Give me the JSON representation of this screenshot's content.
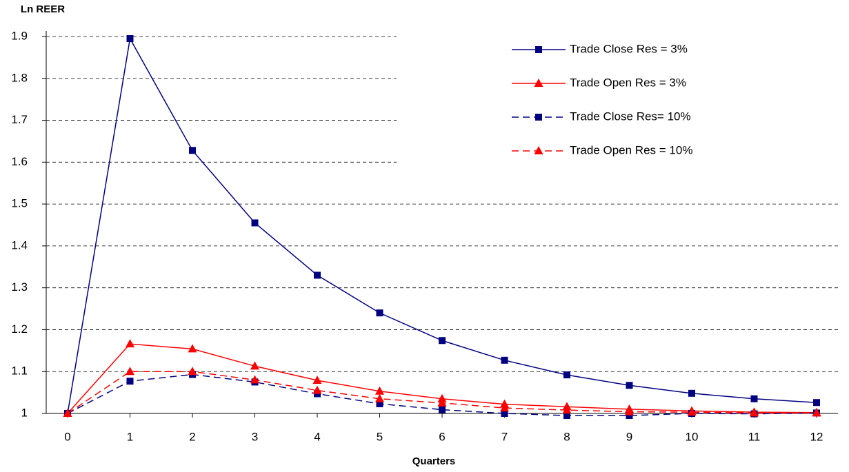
{
  "chart_data": {
    "type": "line",
    "title": "Ln REER",
    "x_label": "Quarters",
    "categories": [
      "0",
      "1",
      "2",
      "3",
      "4",
      "5",
      "6",
      "7",
      "8",
      "9",
      "10",
      "11",
      "12"
    ],
    "ylim": [
      1,
      1.9
    ],
    "yticks": [
      1,
      1.1,
      1.2,
      1.3,
      1.4,
      1.5,
      1.6,
      1.7,
      1.8,
      1.9
    ],
    "grid": true,
    "series": [
      {
        "name": "Trade Close Res = 3%",
        "color": "#000080",
        "marker": "square",
        "dashed": false,
        "values": [
          1.0,
          1.895,
          1.628,
          1.455,
          1.33,
          1.24,
          1.174,
          1.127,
          1.092,
          1.067,
          1.048,
          1.035,
          1.026
        ]
      },
      {
        "name": "Trade Open Res = 3%",
        "color": "#ff0000",
        "marker": "triangle",
        "dashed": false,
        "values": [
          1.0,
          1.166,
          1.154,
          1.113,
          1.079,
          1.053,
          1.035,
          1.022,
          1.016,
          1.01,
          1.006,
          1.003,
          1.002
        ]
      },
      {
        "name": "Trade Close Res= 10%",
        "color": "#000080",
        "marker": "square",
        "dashed": true,
        "values": [
          1.0,
          1.077,
          1.093,
          1.075,
          1.047,
          1.023,
          1.009,
          1.0,
          0.995,
          0.995,
          1.0,
          0.999,
          1.001
        ]
      },
      {
        "name": "Trade Open Res = 10%",
        "color": "#ff0000",
        "marker": "triangle",
        "dashed": true,
        "values": [
          1.0,
          1.1,
          1.1,
          1.08,
          1.055,
          1.035,
          1.025,
          1.013,
          1.008,
          1.004,
          1.003,
          1.001,
          1.001
        ]
      }
    ]
  }
}
